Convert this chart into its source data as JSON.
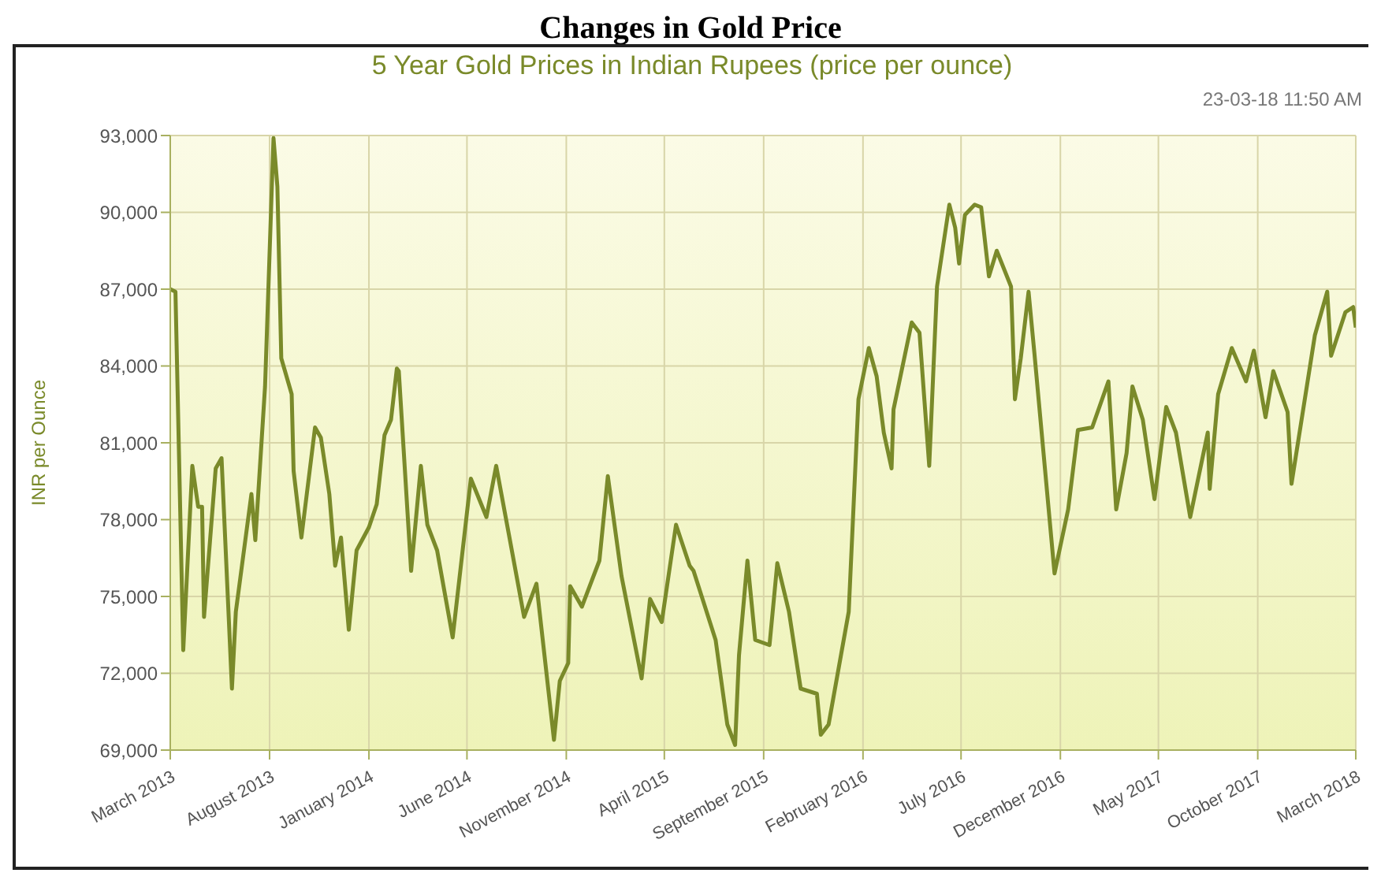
{
  "chart_data": {
    "type": "line",
    "title": "Changes in Gold Price",
    "subtitle": "5 Year Gold Prices in Indian Rupees (price per ounce)",
    "ylabel": "INR per Ounce",
    "annotations": [
      "23-03-18 11:50 AM"
    ],
    "x": [
      "2013-03-01",
      "2013-03-09",
      "2013-03-21",
      "2013-04-04",
      "2013-04-13",
      "2013-04-19",
      "2013-04-22",
      "2013-05-10",
      "2013-05-19",
      "2013-06-04",
      "2013-06-10",
      "2013-07-04",
      "2013-07-10",
      "2013-07-19",
      "2013-07-25",
      "2013-08-07",
      "2013-08-13",
      "2013-08-19",
      "2013-09-04",
      "2013-09-07",
      "2013-09-19",
      "2013-10-10",
      "2013-10-19",
      "2013-11-01",
      "2013-11-10",
      "2013-11-19",
      "2013-12-01",
      "2013-12-13",
      "2014-01-01",
      "2014-01-13",
      "2014-01-25",
      "2014-02-04",
      "2014-02-13",
      "2014-02-16",
      "2014-03-07",
      "2014-03-22",
      "2014-04-01",
      "2014-04-16",
      "2014-05-10",
      "2014-06-07",
      "2014-07-01",
      "2014-07-16",
      "2014-08-04",
      "2014-08-28",
      "2014-09-16",
      "2014-10-13",
      "2014-10-22",
      "2014-11-04",
      "2014-11-07",
      "2014-11-25",
      "2014-12-22",
      "2015-01-04",
      "2015-01-25",
      "2015-02-25",
      "2015-03-10",
      "2015-03-28",
      "2015-04-19",
      "2015-05-10",
      "2015-05-16",
      "2015-06-19",
      "2015-07-07",
      "2015-07-19",
      "2015-07-25",
      "2015-08-07",
      "2015-08-19",
      "2015-09-10",
      "2015-09-22",
      "2015-10-10",
      "2015-10-28",
      "2015-11-22",
      "2015-11-28",
      "2015-12-10",
      "2016-01-10",
      "2016-01-25",
      "2016-02-10",
      "2016-02-22",
      "2016-03-04",
      "2016-03-16",
      "2016-03-19",
      "2016-04-16",
      "2016-04-28",
      "2016-05-13",
      "2016-05-25",
      "2016-06-13",
      "2016-06-22",
      "2016-06-28",
      "2016-07-07",
      "2016-07-22",
      "2016-08-01",
      "2016-08-13",
      "2016-08-25",
      "2016-09-16",
      "2016-09-22",
      "2016-10-01",
      "2016-10-13",
      "2016-10-22",
      "2016-11-22",
      "2016-12-13",
      "2016-12-28",
      "2017-01-19",
      "2017-02-13",
      "2017-02-25",
      "2017-03-13",
      "2017-03-22",
      "2017-04-07",
      "2017-04-25",
      "2017-05-13",
      "2017-05-28",
      "2017-06-19",
      "2017-07-16",
      "2017-07-19",
      "2017-08-01",
      "2017-08-22",
      "2017-09-13",
      "2017-09-25",
      "2017-10-13",
      "2017-10-25",
      "2017-11-16",
      "2017-11-22",
      "2017-12-28",
      "2018-01-16",
      "2018-01-22",
      "2018-02-13",
      "2018-02-25",
      "2018-03-01"
    ],
    "series": [
      {
        "color": "#7a8a2a",
        "values": [
          87000,
          86900,
          72900,
          80100,
          78500,
          78500,
          74200,
          80000,
          80400,
          71400,
          74400,
          79000,
          77200,
          80800,
          83200,
          92900,
          91000,
          84300,
          82900,
          79900,
          77300,
          81600,
          81200,
          79000,
          76200,
          77300,
          73700,
          76800,
          77700,
          78600,
          81300,
          81900,
          83900,
          83800,
          76000,
          80100,
          77800,
          76800,
          73400,
          79600,
          78100,
          80100,
          77500,
          74200,
          75500,
          69400,
          71700,
          72400,
          75400,
          74600,
          76400,
          79700,
          75800,
          71800,
          74900,
          74000,
          77800,
          76200,
          76000,
          73300,
          70000,
          69200,
          72700,
          76400,
          73300,
          73100,
          76300,
          74400,
          71400,
          71200,
          69600,
          70000,
          74400,
          82700,
          84700,
          83600,
          81400,
          80000,
          82300,
          85700,
          85300,
          80100,
          87100,
          90300,
          89400,
          88000,
          89900,
          90300,
          90200,
          87500,
          88500,
          87100,
          82700,
          84300,
          86900,
          84500,
          75900,
          78400,
          81500,
          81600,
          83400,
          78400,
          80600,
          83200,
          81900,
          78800,
          82400,
          81400,
          78100,
          81400,
          79200,
          82900,
          84700,
          83400,
          84600,
          82000,
          83800,
          82200,
          79400,
          85200,
          86900,
          84400,
          86100,
          86300,
          85500
        ]
      }
    ],
    "xlim": [
      "2013-03-01",
      "2018-03-01"
    ],
    "xticks": [
      {
        "value": "2013-03-01",
        "label": "March 2013"
      },
      {
        "value": "2013-08-01",
        "label": "August 2013"
      },
      {
        "value": "2014-01-01",
        "label": "January 2014"
      },
      {
        "value": "2014-06-01",
        "label": "June 2014"
      },
      {
        "value": "2014-11-01",
        "label": "November 2014"
      },
      {
        "value": "2015-04-01",
        "label": "April 2015"
      },
      {
        "value": "2015-09-01",
        "label": "September 2015"
      },
      {
        "value": "2016-02-01",
        "label": "February 2016"
      },
      {
        "value": "2016-07-01",
        "label": "July 2016"
      },
      {
        "value": "2016-12-01",
        "label": "December 2016"
      },
      {
        "value": "2017-05-01",
        "label": "May 2017"
      },
      {
        "value": "2017-10-01",
        "label": "October 2017"
      },
      {
        "value": "2018-03-01",
        "label": "March 2018"
      }
    ],
    "ylim": [
      69000,
      93000
    ],
    "yticks": [
      {
        "value": 69000,
        "label": "69,000"
      },
      {
        "value": 72000,
        "label": "72,000"
      },
      {
        "value": 75000,
        "label": "75,000"
      },
      {
        "value": 78000,
        "label": "78,000"
      },
      {
        "value": 81000,
        "label": "81,000"
      },
      {
        "value": 84000,
        "label": "84,000"
      },
      {
        "value": 87000,
        "label": "87,000"
      },
      {
        "value": 90000,
        "label": "90,000"
      },
      {
        "value": 93000,
        "label": "93,000"
      }
    ],
    "grid": true,
    "legend": false,
    "marker": "none",
    "line_style": "solid"
  }
}
